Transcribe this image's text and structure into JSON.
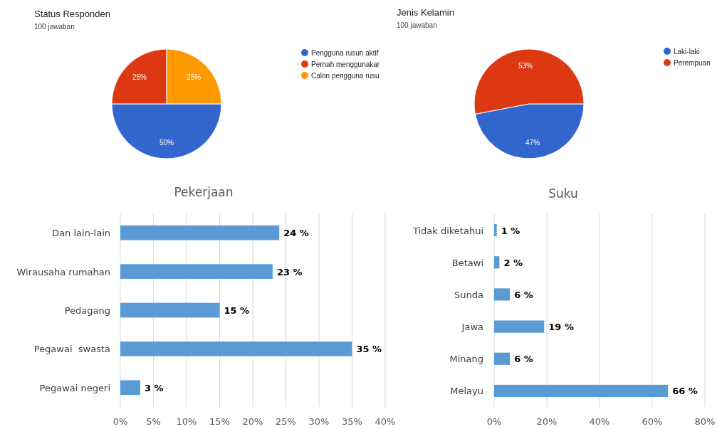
{
  "chart_data": [
    {
      "type": "pie",
      "title": "Status Responden",
      "subtitle": "100 jawaban",
      "categories": [
        "Pengguna rusun aktif",
        "Pernah menggunakar",
        "Calon pengguna rusu"
      ],
      "values": [
        50,
        25,
        25
      ],
      "value_labels": [
        "50%",
        "25%",
        "25%"
      ],
      "colors": [
        "#3366cc",
        "#dc3912",
        "#ff9900"
      ],
      "legend": "right"
    },
    {
      "type": "pie",
      "title": "Jenis Kelamin",
      "subtitle": "100 jawaban",
      "categories": [
        "Laki-laki",
        "Perempuan"
      ],
      "values": [
        47,
        53
      ],
      "value_labels": [
        "47%",
        "53%"
      ],
      "colors": [
        "#3366cc",
        "#dc3912"
      ],
      "legend": "right"
    },
    {
      "type": "bar",
      "orientation": "horizontal",
      "title": "Pekerjaan",
      "categories": [
        "Dan lain-lain",
        "Wirausaha rumahan",
        "Pedagang",
        "Pegawai  swasta",
        "Pegawai negeri"
      ],
      "values": [
        24,
        23,
        15,
        35,
        3
      ],
      "value_labels": [
        "24 %",
        "23 %",
        "15 %",
        "35 %",
        "3 %"
      ],
      "color": "#5b9bd5",
      "xlim": [
        0,
        40
      ],
      "xticks": [
        {
          "value": 0,
          "label": "0%"
        },
        {
          "value": 5,
          "label": "5%"
        },
        {
          "value": 10,
          "label": "10%"
        },
        {
          "value": 15,
          "label": "15%"
        },
        {
          "value": 20,
          "label": "20%"
        },
        {
          "value": 25,
          "label": "25%"
        },
        {
          "value": 30,
          "label": "30%"
        },
        {
          "value": 35,
          "label": "35%"
        },
        {
          "value": 40,
          "label": "40%"
        }
      ],
      "grid": "x"
    },
    {
      "type": "bar",
      "orientation": "horizontal",
      "title": "Suku",
      "categories": [
        "Tidak diketahui",
        "Betawi",
        "Sunda",
        "Jawa",
        "Minang",
        "Melayu"
      ],
      "values": [
        1,
        2,
        6,
        19,
        6,
        66
      ],
      "value_labels": [
        "1 %",
        "2 %",
        "6 %",
        "19 %",
        "6 %",
        "66 %"
      ],
      "color": "#5b9bd5",
      "xlim": [
        0,
        80
      ],
      "xticks": [
        {
          "value": 0,
          "label": "0%"
        },
        {
          "value": 20,
          "label": "20%"
        },
        {
          "value": 40,
          "label": "40%"
        },
        {
          "value": 60,
          "label": "60%"
        },
        {
          "value": 80,
          "label": "80%"
        }
      ],
      "grid": "x"
    }
  ]
}
